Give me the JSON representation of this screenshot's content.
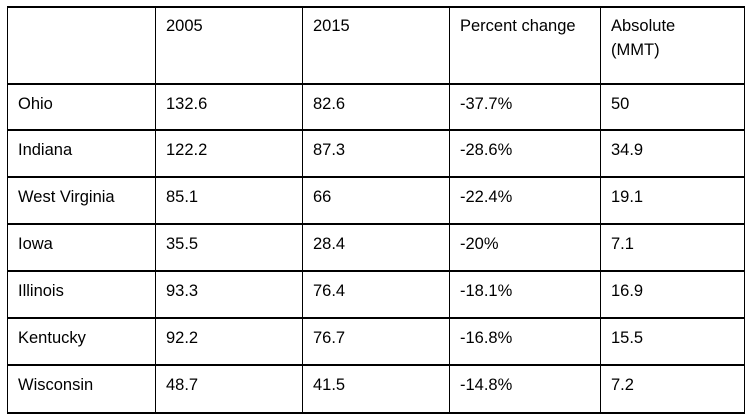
{
  "table": {
    "headers": [
      "",
      "2005",
      "2015",
      "Percent change",
      "Absolute\n(MMT)"
    ],
    "header_lines": {
      "absolute_line1": "Absolute",
      "absolute_line2": "(MMT)"
    },
    "rows": [
      [
        "Ohio",
        "132.6",
        "82.6",
        "-37.7%",
        "50"
      ],
      [
        "Indiana",
        "122.2",
        "87.3",
        "-28.6%",
        "34.9"
      ],
      [
        "West Virginia",
        "85.1",
        "66",
        "-22.4%",
        "19.1"
      ],
      [
        "Iowa",
        "35.5",
        "28.4",
        "-20%",
        "7.1"
      ],
      [
        "Illinois",
        "93.3",
        "76.4",
        "-18.1%",
        "16.9"
      ],
      [
        "Kentucky",
        "92.2",
        "76.7",
        "-16.8%",
        "15.5"
      ],
      [
        "Wisconsin",
        "48.7",
        "41.5",
        "-14.8%",
        "7.2"
      ]
    ]
  }
}
